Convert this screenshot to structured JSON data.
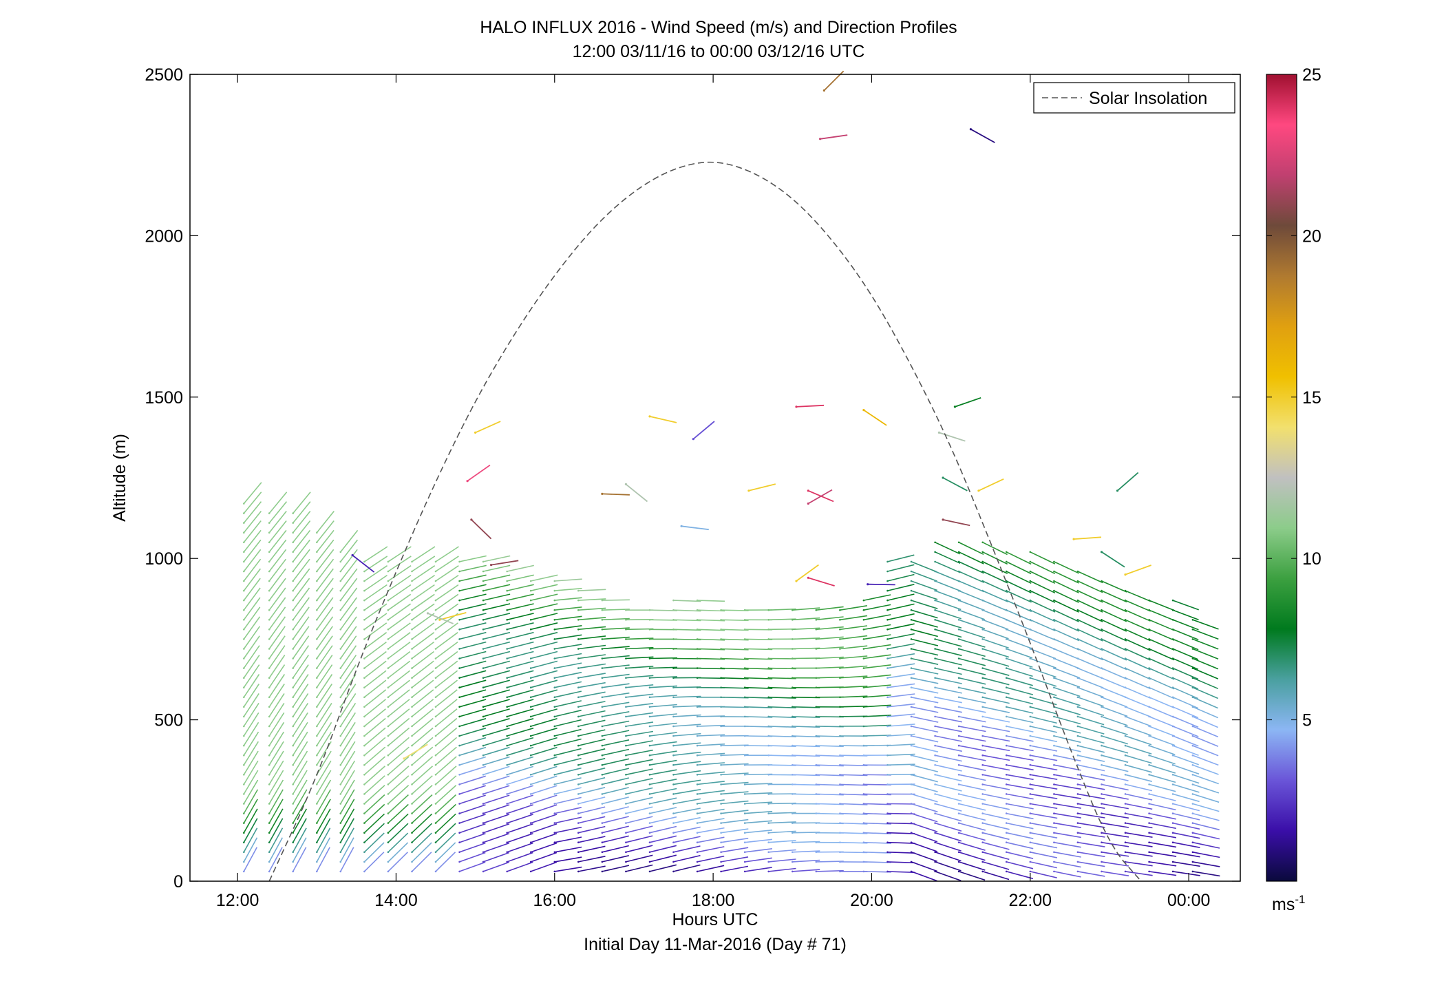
{
  "chart_data": {
    "type": "scatter",
    "title": "HALO INFLUX 2016 - Wind Speed (m/s) and Direction Profiles",
    "subtitle": "12:00 03/11/16 to 00:00 03/12/16  UTC",
    "xlabel": "Hours UTC",
    "xlabel2": "Initial Day 11-Mar-2016 (Day # 71)",
    "ylabel": "Altitude (m)",
    "x_units": "hours",
    "xlim": [
      11.4,
      24.65
    ],
    "ylim": [
      0,
      2500
    ],
    "x_ticks": [
      12,
      14,
      16,
      18,
      20,
      22,
      24
    ],
    "x_tick_labels": [
      "12:00",
      "14:00",
      "16:00",
      "18:00",
      "20:00",
      "22:00",
      "00:00"
    ],
    "y_ticks": [
      0,
      500,
      1000,
      1500,
      2000,
      2500
    ],
    "y_tick_labels": [
      "0",
      "500",
      "1000",
      "1500",
      "2000",
      "2500"
    ],
    "legend": {
      "placement": "top-right",
      "entries": [
        "Solar Insolation"
      ]
    },
    "colorbar": {
      "label": "ms-1",
      "range": [
        0,
        25
      ],
      "ticks": [
        5,
        10,
        15,
        20,
        25
      ],
      "tick_labels": [
        "5",
        "10",
        "15",
        "20",
        "25"
      ],
      "stops": [
        "#0a0a3c",
        "#3a0ea8",
        "#6a55d8",
        "#8cb6f4",
        "#4aa0a0",
        "#007a1e",
        "#3ca040",
        "#8ccc8a",
        "#c0c0c0",
        "#f2e06e",
        "#f0c000",
        "#e0a010",
        "#b07a30",
        "#6e4a3a",
        "#c04070",
        "#ff4880",
        "#a01030"
      ]
    },
    "series": [
      {
        "name": "Solar Insolation",
        "type": "line",
        "style": "dashed",
        "x": [
          12.4,
          13.0,
          13.5,
          14.0,
          14.5,
          15.0,
          15.5,
          16.0,
          16.5,
          17.0,
          17.5,
          18.0,
          18.5,
          19.0,
          19.5,
          20.0,
          20.5,
          21.0,
          21.5,
          22.0,
          22.5,
          23.0,
          23.4
        ],
        "y": [
          0,
          320,
          660,
          960,
          1240,
          1490,
          1700,
          1880,
          2030,
          2140,
          2210,
          2235,
          2200,
          2120,
          1990,
          1820,
          1600,
          1350,
          1050,
          740,
          410,
          110,
          0
        ]
      }
    ],
    "wind_profiles": {
      "marker": "barb",
      "note_values": "times in hours UTC, altitudes in m, speeds in m/s",
      "times": [
        12.08,
        12.4,
        12.7,
        13.0,
        13.3,
        13.6,
        13.9,
        14.2,
        14.5,
        14.8,
        15.1,
        15.4,
        15.7,
        16.0,
        16.3,
        16.6,
        16.9,
        17.2,
        17.5,
        17.8,
        18.1,
        18.4,
        18.7,
        19.0,
        19.3,
        19.6,
        19.9,
        20.2,
        20.5,
        20.8,
        21.1,
        21.4,
        21.7,
        22.0,
        22.3,
        22.6,
        22.9,
        23.2,
        23.5,
        23.8,
        24.05
      ],
      "top_altitudes": [
        1180,
        1150,
        1160,
        1080,
        1020,
        1000,
        1000,
        990,
        1000,
        1000,
        990,
        960,
        940,
        930,
        900,
        880,
        860,
        860,
        870,
        870,
        860,
        850,
        840,
        840,
        840,
        850,
        880,
        1000,
        1000,
        1050,
        1060,
        1060,
        1040,
        1020,
        990,
        960,
        940,
        900,
        880,
        870,
        830
      ]
    },
    "isolated_barbs": [
      {
        "t": 19.4,
        "alt": 2450,
        "speed": 19
      },
      {
        "t": 19.35,
        "alt": 2300,
        "speed": 22
      },
      {
        "t": 21.25,
        "alt": 2330,
        "speed": 1
      },
      {
        "t": 15.0,
        "alt": 1390,
        "speed": 15
      },
      {
        "t": 17.2,
        "alt": 1440,
        "speed": 15
      },
      {
        "t": 17.75,
        "alt": 1370,
        "speed": 3
      },
      {
        "t": 19.05,
        "alt": 1470,
        "speed": 24
      },
      {
        "t": 19.9,
        "alt": 1460,
        "speed": 16
      },
      {
        "t": 21.05,
        "alt": 1470,
        "speed": 8
      },
      {
        "t": 20.85,
        "alt": 1390,
        "speed": 12
      },
      {
        "t": 14.9,
        "alt": 1240,
        "speed": 23
      },
      {
        "t": 16.6,
        "alt": 1200,
        "speed": 19
      },
      {
        "t": 16.9,
        "alt": 1230,
        "speed": 12
      },
      {
        "t": 18.45,
        "alt": 1210,
        "speed": 15
      },
      {
        "t": 19.2,
        "alt": 1210,
        "speed": 24
      },
      {
        "t": 19.2,
        "alt": 1170,
        "speed": 22
      },
      {
        "t": 17.6,
        "alt": 1100,
        "speed": 5
      },
      {
        "t": 14.95,
        "alt": 1120,
        "speed": 21
      },
      {
        "t": 15.2,
        "alt": 980,
        "speed": 21
      },
      {
        "t": 20.9,
        "alt": 1250,
        "speed": 7
      },
      {
        "t": 21.35,
        "alt": 1210,
        "speed": 15
      },
      {
        "t": 20.9,
        "alt": 1120,
        "speed": 21
      },
      {
        "t": 23.1,
        "alt": 1210,
        "speed": 7
      },
      {
        "t": 22.55,
        "alt": 1060,
        "speed": 15
      },
      {
        "t": 22.9,
        "alt": 1020,
        "speed": 7
      },
      {
        "t": 23.2,
        "alt": 950,
        "speed": 15
      },
      {
        "t": 19.2,
        "alt": 940,
        "speed": 24
      },
      {
        "t": 19.05,
        "alt": 930,
        "speed": 15
      },
      {
        "t": 19.95,
        "alt": 920,
        "speed": 2
      },
      {
        "t": 13.45,
        "alt": 1010,
        "speed": 2
      },
      {
        "t": 14.55,
        "alt": 810,
        "speed": 15
      },
      {
        "t": 14.4,
        "alt": 830,
        "speed": 12
      },
      {
        "t": 14.1,
        "alt": 380,
        "speed": 14
      }
    ]
  }
}
